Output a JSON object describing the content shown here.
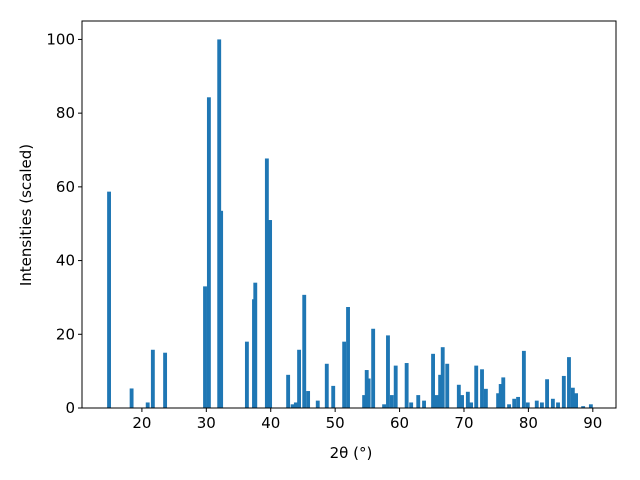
{
  "chart_data": {
    "type": "bar",
    "xlabel": "2θ (°)",
    "ylabel": "Intensities (scaled)",
    "color": "#1f77b4",
    "x": [
      14.9,
      18.4,
      20.9,
      21.7,
      23.6,
      29.8,
      30.4,
      32.0,
      32.3,
      36.3,
      37.4,
      37.6,
      39.4,
      39.9,
      42.7,
      43.4,
      43.9,
      44.4,
      45.2,
      45.8,
      47.3,
      48.7,
      49.7,
      51.4,
      52.0,
      54.5,
      54.9,
      55.2,
      55.9,
      57.6,
      58.2,
      58.8,
      59.4,
      61.1,
      61.8,
      62.9,
      63.8,
      65.2,
      65.8,
      66.3,
      66.7,
      67.4,
      69.2,
      69.7,
      70.6,
      71.1,
      71.9,
      72.8,
      73.4,
      75.3,
      75.7,
      76.1,
      77.0,
      77.8,
      78.4,
      79.3,
      79.9,
      81.3,
      82.1,
      82.9,
      83.8,
      84.6,
      85.5,
      86.3,
      86.9,
      87.4,
      88.5,
      89.7
    ],
    "values": [
      58.7,
      5.3,
      1.5,
      15.8,
      15,
      33,
      84.3,
      100,
      53.5,
      18,
      29.5,
      34,
      67.7,
      51,
      9,
      1,
      1.5,
      15.8,
      30.7,
      4.6,
      2,
      12,
      6,
      18,
      27.4,
      3.5,
      10.3,
      8,
      21.5,
      1,
      19.7,
      3.5,
      11.5,
      12.2,
      1.5,
      3.5,
      2,
      14.7,
      3.5,
      9,
      16.5,
      12,
      6.3,
      3.5,
      4.4,
      1.5,
      11.5,
      10.5,
      5.2,
      4,
      6.5,
      8.3,
      1,
      2.5,
      3,
      15.5,
      1.5,
      2,
      1.5,
      7.8,
      2.5,
      1.5,
      8.7,
      13.8,
      5.5,
      4,
      0.5,
      1
    ],
    "xlim": [
      10.7,
      93.6
    ],
    "xticks": [
      20,
      30,
      40,
      50,
      60,
      70,
      80,
      90
    ],
    "ylim": [
      0,
      105
    ],
    "yticks": [
      0,
      20,
      40,
      60,
      80,
      100
    ]
  }
}
